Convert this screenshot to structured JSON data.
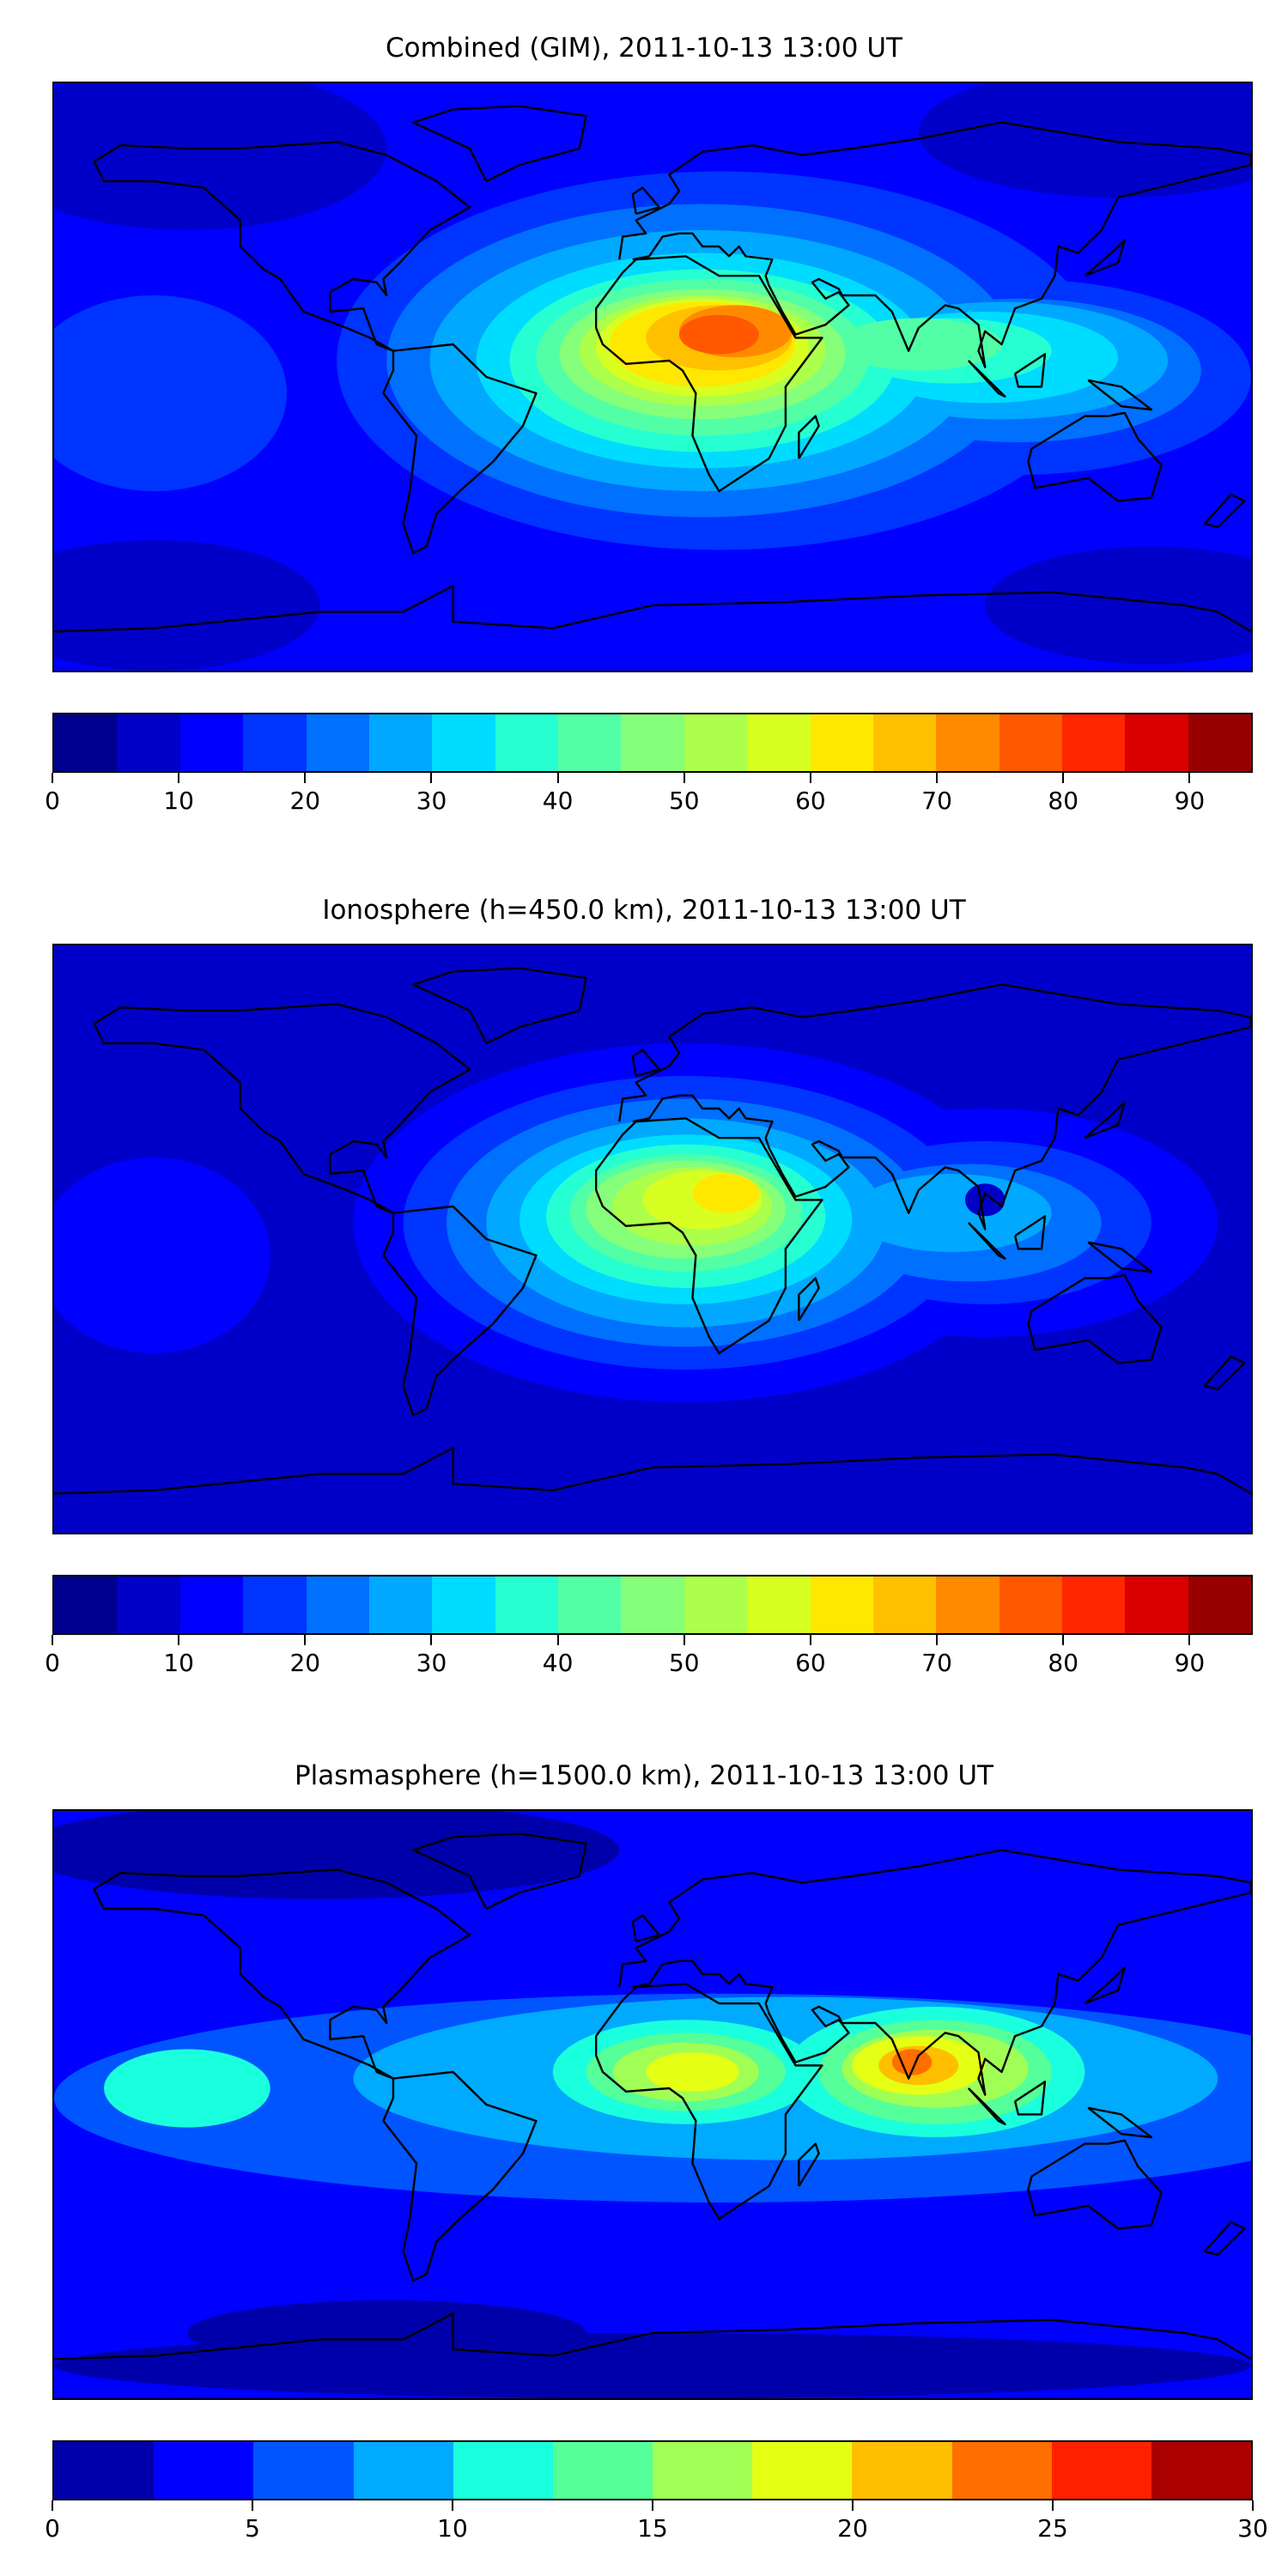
{
  "panels": [
    {
      "title": "Combined (GIM), 2011-10-13 13:00 UT",
      "colorbar": {
        "min": 0,
        "max": 95,
        "step": 5,
        "ticks": [
          "0",
          "10",
          "20",
          "30",
          "40",
          "50",
          "60",
          "70",
          "80",
          "90"
        ],
        "tick_values": [
          0,
          10,
          20,
          30,
          40,
          50,
          60,
          70,
          80,
          90
        ],
        "colors": [
          "#00008f",
          "#0000c8",
          "#0000ff",
          "#0034ff",
          "#0070ff",
          "#00a8ff",
          "#00dcff",
          "#26ffd2",
          "#52ffa6",
          "#86ff7a",
          "#acff4a",
          "#d8ff22",
          "#ffe800",
          "#ffc000",
          "#ff8a00",
          "#ff5800",
          "#ff2600",
          "#d80000",
          "#980000"
        ]
      }
    },
    {
      "title": "Ionosphere  (h=450.0 km), 2011-10-13 13:00 UT",
      "colorbar": {
        "min": 0,
        "max": 95,
        "step": 5,
        "ticks": [
          "0",
          "10",
          "20",
          "30",
          "40",
          "50",
          "60",
          "70",
          "80",
          "90"
        ],
        "tick_values": [
          0,
          10,
          20,
          30,
          40,
          50,
          60,
          70,
          80,
          90
        ],
        "colors": [
          "#00008f",
          "#0000c8",
          "#0000ff",
          "#0034ff",
          "#0070ff",
          "#00a8ff",
          "#00dcff",
          "#26ffd2",
          "#52ffa6",
          "#86ff7a",
          "#acff4a",
          "#d8ff22",
          "#ffe800",
          "#ffc000",
          "#ff8a00",
          "#ff5800",
          "#ff2600",
          "#d80000",
          "#980000"
        ]
      }
    },
    {
      "title": "Plasmasphere (h=1500.0 km), 2011-10-13 13:00 UT",
      "colorbar": {
        "min": 0,
        "max": 30,
        "step": 2.5,
        "ticks": [
          "0",
          "5",
          "10",
          "15",
          "20",
          "25",
          "30"
        ],
        "tick_values": [
          0,
          5,
          10,
          15,
          20,
          25,
          30
        ],
        "colors": [
          "#0000aa",
          "#0000ff",
          "#0055ff",
          "#00aaff",
          "#1affdd",
          "#55ff99",
          "#a0ff55",
          "#e5ff15",
          "#ffbf00",
          "#ff6e00",
          "#ff2000",
          "#aa0000"
        ]
      }
    }
  ]
}
